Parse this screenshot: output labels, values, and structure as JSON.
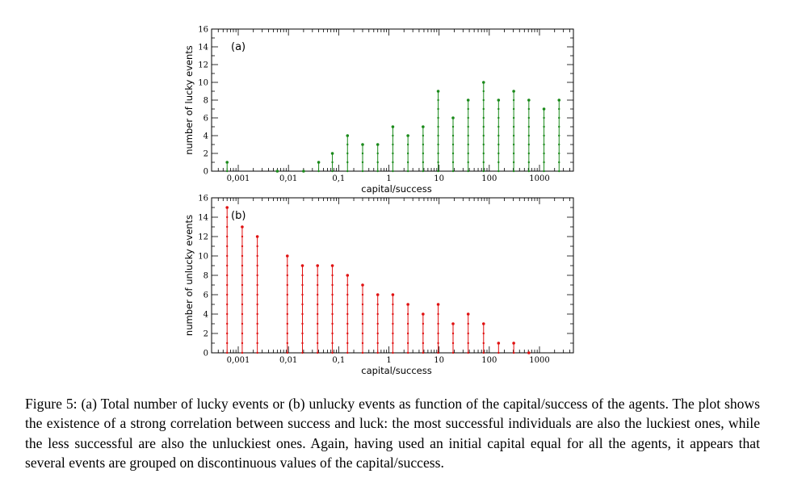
{
  "chart_data": [
    {
      "type": "scatter",
      "panel_label": "(a)",
      "xlabel": "capital/success",
      "ylabel": "number of lucky events",
      "xscale": "log",
      "xlim": [
        0.0003,
        4000
      ],
      "ylim": [
        0,
        16
      ],
      "x_tick_labels": [
        "0,001",
        "0,01",
        "0,1",
        "1",
        "10",
        "100",
        "1000"
      ],
      "y_tick_labels": [
        "0",
        "2",
        "4",
        "6",
        "8",
        "10",
        "12",
        "14",
        "16"
      ],
      "color": "#1a8a1a",
      "columns": [
        {
          "x": 0.0006,
          "max": 1
        },
        {
          "x": 0.006,
          "max": 0
        },
        {
          "x": 0.02,
          "max": 0
        },
        {
          "x": 0.04,
          "max": 1
        },
        {
          "x": 0.075,
          "max": 2
        },
        {
          "x": 0.15,
          "max": 4
        },
        {
          "x": 0.3,
          "max": 3
        },
        {
          "x": 0.6,
          "max": 3
        },
        {
          "x": 1.2,
          "max": 5
        },
        {
          "x": 2.4,
          "max": 4
        },
        {
          "x": 4.8,
          "max": 5
        },
        {
          "x": 9.6,
          "max": 9
        },
        {
          "x": 19,
          "max": 6
        },
        {
          "x": 38,
          "max": 8
        },
        {
          "x": 77,
          "max": 10
        },
        {
          "x": 153,
          "max": 8
        },
        {
          "x": 307,
          "max": 9
        },
        {
          "x": 614,
          "max": 8
        },
        {
          "x": 1228,
          "max": 7
        },
        {
          "x": 2456,
          "max": 8
        }
      ]
    },
    {
      "type": "scatter",
      "panel_label": "(b)",
      "xlabel": "capital/success",
      "ylabel": "number of unlucky events",
      "xscale": "log",
      "xlim": [
        0.0003,
        4000
      ],
      "ylim": [
        0,
        16
      ],
      "x_tick_labels": [
        "0,001",
        "0,01",
        "0,1",
        "1",
        "10",
        "100",
        "1000"
      ],
      "y_tick_labels": [
        "0",
        "2",
        "4",
        "6",
        "8",
        "10",
        "12",
        "14",
        "16"
      ],
      "color": "#e01010",
      "columns": [
        {
          "x": 0.0006,
          "max": 15
        },
        {
          "x": 0.0012,
          "max": 13
        },
        {
          "x": 0.0024,
          "max": 12
        },
        {
          "x": 0.0095,
          "max": 10
        },
        {
          "x": 0.019,
          "max": 9
        },
        {
          "x": 0.038,
          "max": 9
        },
        {
          "x": 0.075,
          "max": 9
        },
        {
          "x": 0.15,
          "max": 8
        },
        {
          "x": 0.3,
          "max": 7
        },
        {
          "x": 0.6,
          "max": 6
        },
        {
          "x": 1.2,
          "max": 6
        },
        {
          "x": 2.4,
          "max": 5
        },
        {
          "x": 4.8,
          "max": 4
        },
        {
          "x": 9.6,
          "max": 5
        },
        {
          "x": 19,
          "max": 3
        },
        {
          "x": 38,
          "max": 4
        },
        {
          "x": 77,
          "max": 3
        },
        {
          "x": 153,
          "max": 1
        },
        {
          "x": 307,
          "max": 1
        },
        {
          "x": 614,
          "max": 0
        }
      ]
    }
  ],
  "caption": "Figure 5: (a) Total number of lucky events or (b) unlucky events as function of the capital/success of the agents. The plot shows the existence of a strong correlation between success and luck: the most successful individuals are also the luckiest ones, while the less successful are also the unluckiest ones. Again, having used an initial capital equal for all the agents, it appears that several events are grouped on discontinuous values of the capital/success."
}
